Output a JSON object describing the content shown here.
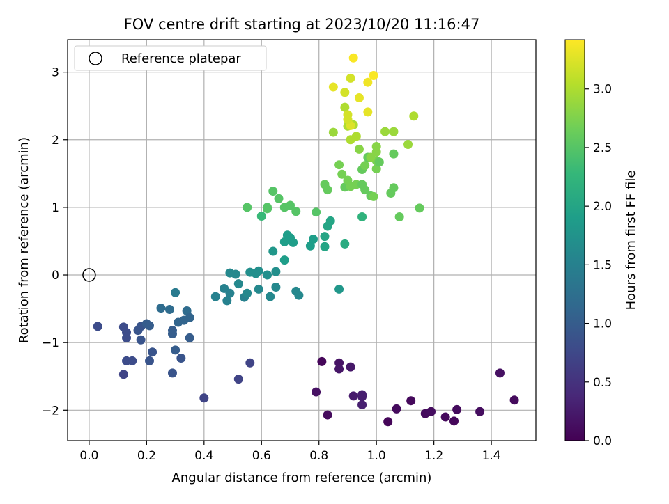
{
  "chart_data": {
    "type": "scatter",
    "title": "FOV centre drift starting at 2023/10/20 11:16:47",
    "xlabel": "Angular distance from reference (arcmin)",
    "ylabel": "Rotation from reference (arcmin)",
    "xlim": [
      -0.075,
      1.555
    ],
    "ylim": [
      -2.45,
      3.48
    ],
    "xticks": [
      0.0,
      0.2,
      0.4,
      0.6,
      0.8,
      1.0,
      1.2,
      1.4
    ],
    "xtick_labels": [
      "0.0",
      "0.2",
      "0.4",
      "0.6",
      "0.8",
      "1.0",
      "1.2",
      "1.4"
    ],
    "yticks": [
      -2,
      -1,
      0,
      1,
      2,
      3
    ],
    "ytick_labels": [
      "−2",
      "−1",
      "0",
      "1",
      "2",
      "3"
    ],
    "grid": true,
    "legend": {
      "placement": "top-left",
      "entries": [
        "Reference platepar"
      ]
    },
    "reference_point": {
      "x": 0.0,
      "y": 0.0,
      "label": "Reference platepar"
    },
    "colorbar": {
      "label": "Hours from first FF file",
      "range": [
        0.0,
        3.42
      ],
      "ticks": [
        0.0,
        0.5,
        1.0,
        1.5,
        2.0,
        2.5,
        3.0
      ],
      "tick_labels": [
        "0.0",
        "0.5",
        "1.0",
        "1.5",
        "2.0",
        "2.5",
        "3.0"
      ],
      "colormap": "viridis",
      "colormap_stops": [
        "#440154",
        "#482878",
        "#3e4989",
        "#31688e",
        "#26828e",
        "#1f9e89",
        "#35b779",
        "#6ece58",
        "#b5de2b",
        "#fde725"
      ]
    },
    "points": [
      [
        0.81,
        -1.28,
        0.05
      ],
      [
        0.83,
        -2.07,
        0.1
      ],
      [
        0.79,
        -1.73,
        0.15
      ],
      [
        0.87,
        -1.3,
        0.18
      ],
      [
        0.87,
        -1.39,
        0.2
      ],
      [
        0.91,
        -1.36,
        0.22
      ],
      [
        0.92,
        -1.79,
        0.25
      ],
      [
        0.95,
        -1.8,
        0.27
      ],
      [
        0.95,
        -1.92,
        0.3
      ],
      [
        0.95,
        -1.77,
        0.28
      ],
      [
        1.04,
        -2.17,
        0.05
      ],
      [
        1.07,
        -1.98,
        0.1
      ],
      [
        1.12,
        -1.86,
        0.08
      ],
      [
        1.17,
        -2.05,
        0.1
      ],
      [
        1.19,
        -2.02,
        0.12
      ],
      [
        1.24,
        -2.1,
        0.08
      ],
      [
        1.27,
        -2.16,
        0.06
      ],
      [
        1.28,
        -1.99,
        0.1
      ],
      [
        1.36,
        -2.02,
        0.12
      ],
      [
        1.43,
        -1.45,
        0.15
      ],
      [
        1.48,
        -1.85,
        0.1
      ],
      [
        0.03,
        -0.76,
        0.8
      ],
      [
        0.12,
        -1.47,
        0.7
      ],
      [
        0.12,
        -0.77,
        0.8
      ],
      [
        0.13,
        -0.85,
        0.8
      ],
      [
        0.13,
        -0.93,
        0.8
      ],
      [
        0.13,
        -1.27,
        0.8
      ],
      [
        0.15,
        -1.27,
        0.8
      ],
      [
        0.17,
        -0.82,
        0.9
      ],
      [
        0.18,
        -0.96,
        0.9
      ],
      [
        0.18,
        -0.76,
        0.9
      ],
      [
        0.2,
        -0.72,
        1.0
      ],
      [
        0.21,
        -0.75,
        1.0
      ],
      [
        0.21,
        -1.27,
        0.9
      ],
      [
        0.22,
        -1.14,
        0.9
      ],
      [
        0.25,
        -0.49,
        1.2
      ],
      [
        0.28,
        -0.51,
        1.2
      ],
      [
        0.29,
        -0.82,
        1.0
      ],
      [
        0.29,
        -1.45,
        0.9
      ],
      [
        0.29,
        -0.87,
        1.0
      ],
      [
        0.3,
        -1.11,
        1.0
      ],
      [
        0.3,
        -0.26,
        1.4
      ],
      [
        0.31,
        -0.7,
        1.1
      ],
      [
        0.32,
        -1.23,
        0.9
      ],
      [
        0.33,
        -0.67,
        1.1
      ],
      [
        0.34,
        -0.53,
        1.2
      ],
      [
        0.35,
        -0.63,
        1.1
      ],
      [
        0.35,
        -0.93,
        1.0
      ],
      [
        0.4,
        -1.82,
        0.7
      ],
      [
        0.52,
        -1.54,
        0.7
      ],
      [
        0.56,
        -1.3,
        0.7
      ],
      [
        0.44,
        -0.32,
        1.5
      ],
      [
        0.47,
        -0.2,
        1.5
      ],
      [
        0.48,
        -0.38,
        1.5
      ],
      [
        0.49,
        -0.27,
        1.5
      ],
      [
        0.49,
        0.03,
        1.6
      ],
      [
        0.51,
        0.01,
        1.6
      ],
      [
        0.52,
        -0.13,
        1.6
      ],
      [
        0.54,
        -0.33,
        1.5
      ],
      [
        0.55,
        -0.27,
        1.6
      ],
      [
        0.56,
        0.04,
        1.7
      ],
      [
        0.58,
        0.02,
        1.7
      ],
      [
        0.59,
        0.06,
        1.7
      ],
      [
        0.59,
        -0.21,
        1.6
      ],
      [
        0.62,
        0.0,
        1.7
      ],
      [
        0.63,
        -0.32,
        1.6
      ],
      [
        0.64,
        0.35,
        1.8
      ],
      [
        0.65,
        0.05,
        1.7
      ],
      [
        0.65,
        -0.18,
        1.6
      ],
      [
        0.68,
        0.49,
        1.9
      ],
      [
        0.68,
        0.22,
        1.9
      ],
      [
        0.69,
        0.59,
        1.9
      ],
      [
        0.7,
        0.55,
        1.9
      ],
      [
        0.71,
        0.48,
        1.9
      ],
      [
        0.72,
        -0.24,
        1.6
      ],
      [
        0.73,
        -0.3,
        1.6
      ],
      [
        0.77,
        0.43,
        1.9
      ],
      [
        0.78,
        0.53,
        1.9
      ],
      [
        0.82,
        0.42,
        2.0
      ],
      [
        0.82,
        0.57,
        2.0
      ],
      [
        0.83,
        0.72,
        2.0
      ],
      [
        0.84,
        0.8,
        2.0
      ],
      [
        0.87,
        -0.21,
        1.8
      ],
      [
        0.89,
        0.46,
        2.1
      ],
      [
        0.95,
        0.86,
        2.2
      ],
      [
        0.55,
        1.0,
        2.5
      ],
      [
        0.6,
        0.87,
        2.3
      ],
      [
        0.62,
        0.98,
        2.5
      ],
      [
        0.62,
        1.0,
        2.5
      ],
      [
        0.64,
        1.24,
        2.5
      ],
      [
        0.66,
        1.13,
        2.5
      ],
      [
        0.68,
        1.0,
        2.5
      ],
      [
        0.7,
        1.03,
        2.5
      ],
      [
        0.72,
        0.94,
        2.5
      ],
      [
        0.79,
        0.93,
        2.5
      ],
      [
        0.82,
        1.34,
        2.6
      ],
      [
        0.83,
        1.26,
        2.6
      ],
      [
        0.87,
        1.63,
        2.7
      ],
      [
        0.88,
        1.49,
        2.7
      ],
      [
        0.89,
        1.3,
        2.6
      ],
      [
        0.9,
        1.4,
        2.7
      ],
      [
        0.91,
        1.31,
        2.7
      ],
      [
        0.93,
        1.34,
        2.7
      ],
      [
        0.95,
        1.56,
        2.6
      ],
      [
        0.95,
        1.34,
        2.6
      ],
      [
        0.96,
        1.26,
        2.6
      ],
      [
        0.96,
        1.62,
        2.7
      ],
      [
        0.97,
        1.74,
        2.6
      ],
      [
        0.98,
        1.17,
        2.6
      ],
      [
        0.99,
        1.16,
        2.7
      ],
      [
        1.0,
        1.69,
        2.7
      ],
      [
        1.0,
        1.57,
        2.7
      ],
      [
        1.01,
        1.67,
        2.6
      ],
      [
        1.05,
        1.21,
        2.6
      ],
      [
        1.06,
        1.29,
        2.6
      ],
      [
        1.08,
        0.86,
        2.6
      ],
      [
        1.15,
        0.99,
        2.6
      ],
      [
        1.06,
        1.79,
        2.6
      ],
      [
        0.85,
        2.11,
        2.9
      ],
      [
        0.89,
        2.48,
        3.0
      ],
      [
        0.9,
        2.2,
        3.0
      ],
      [
        0.91,
        2.0,
        3.0
      ],
      [
        0.92,
        2.22,
        3.0
      ],
      [
        0.93,
        2.05,
        3.0
      ],
      [
        0.94,
        1.86,
        2.8
      ],
      [
        0.98,
        1.74,
        2.8
      ],
      [
        1.0,
        1.82,
        2.8
      ],
      [
        1.0,
        1.9,
        2.8
      ],
      [
        1.03,
        2.12,
        2.9
      ],
      [
        1.06,
        2.12,
        2.9
      ],
      [
        1.11,
        1.93,
        2.9
      ],
      [
        1.13,
        2.35,
        3.0
      ],
      [
        0.85,
        2.78,
        3.3
      ],
      [
        0.89,
        2.7,
        3.2
      ],
      [
        0.9,
        2.37,
        3.2
      ],
      [
        0.91,
        2.91,
        3.2
      ],
      [
        0.91,
        2.21,
        3.25
      ],
      [
        0.92,
        3.21,
        3.4
      ],
      [
        0.94,
        2.62,
        3.3
      ],
      [
        0.97,
        2.85,
        3.35
      ],
      [
        0.97,
        2.41,
        3.3
      ],
      [
        0.99,
        2.95,
        3.4
      ],
      [
        0.9,
        2.3,
        3.2
      ]
    ]
  }
}
